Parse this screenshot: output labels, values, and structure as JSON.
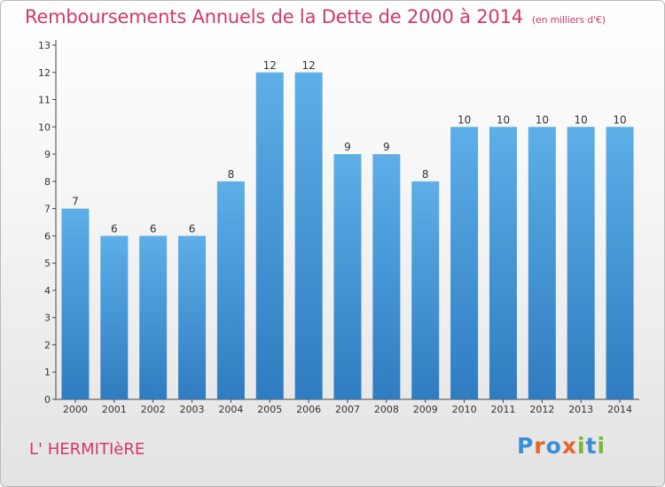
{
  "title": "Remboursements Annuels de la Dette de 2000 à 2014",
  "unit_note": "(en milliers d'€)",
  "commune": "L' HERMITIèRE",
  "logo": {
    "text": "Proxiti",
    "letters": [
      "P",
      "r",
      "o",
      "x",
      "i",
      "t",
      "i"
    ],
    "letter_colors": [
      "#3a8fd8",
      "#e8632a",
      "#3a8fd8",
      "#e8632a",
      "#7ab832",
      "#3a8fd8",
      "#7ab832"
    ]
  },
  "colors": {
    "bar_top": "#5eaee8",
    "bar_bottom": "#2f7cc0",
    "title": "#d2386c"
  },
  "chart_data": {
    "type": "bar",
    "categories": [
      "2000",
      "2001",
      "2002",
      "2003",
      "2004",
      "2005",
      "2006",
      "2007",
      "2008",
      "2009",
      "2010",
      "2011",
      "2012",
      "2013",
      "2014"
    ],
    "values": [
      7,
      6,
      6,
      6,
      8,
      12,
      12,
      9,
      9,
      8,
      10,
      10,
      10,
      10,
      10
    ],
    "yticks": [
      "0",
      "1",
      "2",
      "3",
      "4",
      "5",
      "6",
      "7",
      "8",
      "9",
      "10",
      "11",
      "12",
      "13"
    ],
    "ylim": [
      0,
      13
    ],
    "grid": false
  }
}
